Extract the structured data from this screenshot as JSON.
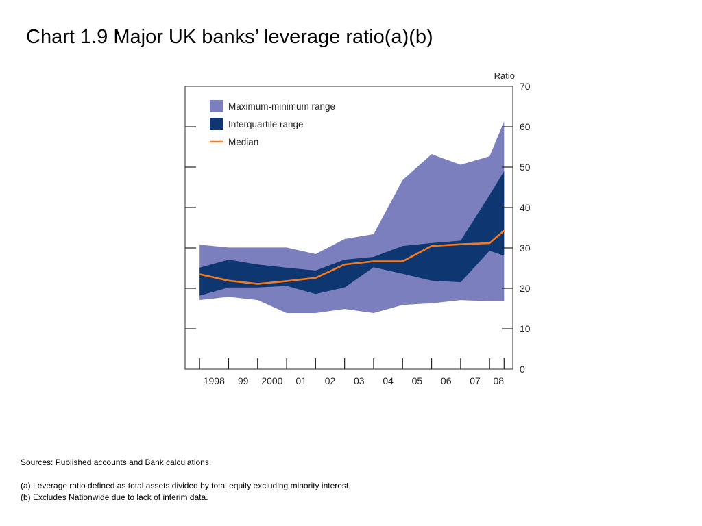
{
  "page": {
    "title": "Chart 1.9  Major UK banks’ leverage ratio(a)(b)"
  },
  "chart_data": {
    "type": "area",
    "x": [
      1997.5,
      1998.5,
      1999.5,
      2000.5,
      2001.5,
      2002.5,
      2003.5,
      2004.5,
      2005.5,
      2006.5,
      2007.5,
      2008.0
    ],
    "x_tick_labels": [
      "1998",
      "99",
      "2000",
      "01",
      "02",
      "03",
      "04",
      "05",
      "06",
      "07",
      "08"
    ],
    "x_tick_label_positions": [
      1998,
      1999,
      2000,
      2001,
      2002,
      2003,
      2004,
      2005,
      2006,
      2007,
      2008
    ],
    "y_ticks": [
      0,
      10,
      20,
      30,
      40,
      50,
      60,
      70
    ],
    "ylim": [
      0,
      70
    ],
    "xlim": [
      1997,
      2008.3
    ],
    "ylabel": "Ratio",
    "xlabel": "",
    "grid": false,
    "legend_position": "top-left",
    "series": [
      {
        "name": "Maximum-minimum range",
        "kind": "band",
        "color": "#7b7fbd",
        "upper": [
          30.8,
          30.1,
          30.1,
          30.1,
          28.5,
          32.2,
          33.4,
          46.8,
          53.2,
          50.6,
          52.7,
          61.3
        ],
        "lower": [
          17.1,
          17.9,
          17.1,
          13.9,
          13.9,
          14.9,
          13.9,
          15.9,
          16.3,
          17.1,
          16.8,
          16.8
        ]
      },
      {
        "name": "Interquartile range",
        "kind": "band",
        "color": "#0e3670",
        "upper": [
          25.1,
          27.1,
          25.9,
          25.1,
          24.4,
          27.1,
          27.8,
          30.5,
          31.2,
          31.8,
          43.1,
          49.0
        ],
        "lower": [
          18.2,
          20.2,
          20.2,
          20.6,
          18.6,
          20.2,
          25.2,
          23.6,
          21.9,
          21.5,
          29.3,
          28.1
        ]
      },
      {
        "name": "Median",
        "kind": "line",
        "color": "#f47a20",
        "values": [
          23.5,
          21.9,
          21.1,
          21.8,
          22.6,
          25.9,
          26.7,
          26.7,
          30.5,
          30.9,
          31.2,
          34.3
        ]
      }
    ]
  },
  "notes": {
    "sources": "Sources:  Published accounts and Bank calculations.",
    "note_a": "(a)  Leverage ratio defined as total assets divided by total equity excluding minority interest.",
    "note_b": "(b)  Excludes Nationwide due to lack of interim data."
  }
}
